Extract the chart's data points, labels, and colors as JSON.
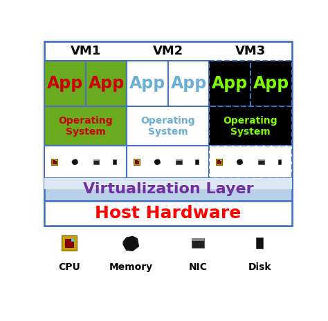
{
  "fig_bg": "#ffffff",
  "vm_labels": [
    "VM1",
    "VM2",
    "VM3"
  ],
  "vm_label_color": "#000000",
  "app_row_vm1_bg": "#6aaa1e",
  "app_row_vm2_bg": "#ffffff",
  "app_row_vm3_bg": "#000000",
  "app_vm1_color": "#cc0000",
  "app_vm2_color": "#6baed6",
  "app_vm3_color": "#7cfc00",
  "os_vm1_bg": "#6aaa1e",
  "os_vm2_bg": "#ffffff",
  "os_vm3_bg": "#000000",
  "os_vm1_color": "#cc0000",
  "os_vm2_color": "#6baed6",
  "os_vm3_color": "#7cfc00",
  "virt_layer_color": "#7030a0",
  "virt_layer_text": "Virtualization Layer",
  "host_hw_text": "Host Hardware",
  "host_hw_color": "#ff0000",
  "hw_icons_labels": [
    "CPU",
    "Memory",
    "NIC",
    "Disk"
  ],
  "border_color": "#4472c4",
  "vm_label_fontsize": 13,
  "app_fontsize": 17,
  "os_fontsize": 10,
  "virt_fontsize": 16,
  "host_fontsize": 18,
  "hw_label_fontsize": 10
}
